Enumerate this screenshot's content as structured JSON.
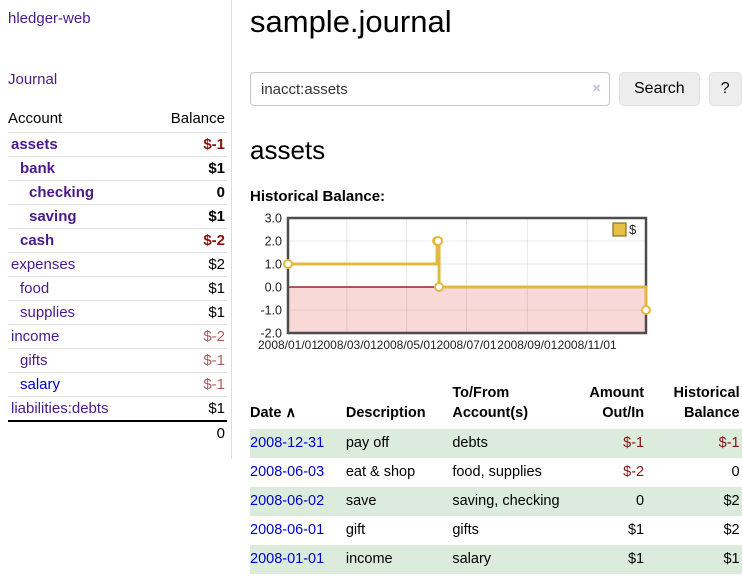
{
  "app": {
    "title": "hledger-web"
  },
  "sidebar": {
    "journal_link": "Journal",
    "accounts": {
      "headers": {
        "account": "Account",
        "balance": "Balance"
      },
      "rows": [
        {
          "account": "assets",
          "balance": "$-1"
        },
        {
          "account": "bank",
          "balance": "$1"
        },
        {
          "account": "checking",
          "balance": "0"
        },
        {
          "account": "saving",
          "balance": "$1"
        },
        {
          "account": "cash",
          "balance": "$-2"
        },
        {
          "account": "expenses",
          "balance": "$2"
        },
        {
          "account": "food",
          "balance": "$1"
        },
        {
          "account": "supplies",
          "balance": "$1"
        },
        {
          "account": "income",
          "balance": "$-2"
        },
        {
          "account": "gifts",
          "balance": "$-1"
        },
        {
          "account": "salary",
          "balance": "$-1"
        },
        {
          "account": "liabilities:debts",
          "balance": "$1"
        }
      ],
      "total": "0"
    }
  },
  "main": {
    "title": "sample.journal",
    "search": {
      "value": "inacct:assets",
      "clear_icon": "×",
      "button": "Search",
      "help_button": "?"
    },
    "account_heading": "assets",
    "chart_label": "Historical Balance:",
    "register": {
      "headers": {
        "date": "Date",
        "sort_indicator": "∧",
        "description": "Description",
        "accounts_l1": "To/From",
        "accounts_l2": "Account(s)",
        "amount_l1": "Amount",
        "amount_l2": "Out/In",
        "balance_l1": "Historical",
        "balance_l2": "Balance"
      },
      "rows": [
        {
          "date": "2008-12-31",
          "description": "pay off",
          "accounts": "debts",
          "amount": "$-1",
          "balance": "$-1"
        },
        {
          "date": "2008-06-03",
          "description": "eat & shop",
          "accounts": "food, supplies",
          "amount": "$-2",
          "balance": "0"
        },
        {
          "date": "2008-06-02",
          "description": "save",
          "accounts": "saving, checking",
          "amount": "0",
          "balance": "$2"
        },
        {
          "date": "2008-06-01",
          "description": "gift",
          "accounts": "gifts",
          "amount": "$1",
          "balance": "$2"
        },
        {
          "date": "2008-01-01",
          "description": "income",
          "accounts": "salary",
          "amount": "$1",
          "balance": "$1"
        }
      ]
    }
  },
  "chart_data": {
    "type": "line",
    "title": "Historical Balance",
    "step": true,
    "series": [
      {
        "name": "$",
        "points": [
          [
            "2008-01-01",
            1
          ],
          [
            "2008-06-01",
            2
          ],
          [
            "2008-06-02",
            2
          ],
          [
            "2008-06-03",
            0
          ],
          [
            "2008-12-31",
            -1
          ]
        ]
      }
    ],
    "x_domain": [
      "2008-01-01",
      "2008-12-31"
    ],
    "x_ticks": [
      "2008/01/01",
      "2008/03/01",
      "2008/05/01",
      "2008/07/01",
      "2008/09/01",
      "2008/11/01"
    ],
    "y_ticks": [
      "3.0",
      "2.0",
      "1.0",
      "0.0",
      "-1.0",
      "-2.0"
    ],
    "ylim": [
      -2,
      3
    ],
    "grid": true,
    "legend": [
      "$"
    ],
    "legend_position": "top-right",
    "line_color": "#e4b83e",
    "marker_fill": "#ffffff",
    "negative_region_fill": "#f9d8d8",
    "zero_line_color": "#7b0000",
    "border_color": "#4d4d4d"
  }
}
